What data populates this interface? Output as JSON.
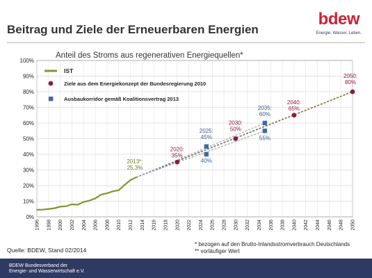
{
  "logo": {
    "wordmark": "bdew",
    "tagline": "Energie. Wasser. Leben."
  },
  "title": "Beitrag und Ziele der Erneuerbaren Energien",
  "subtitle": "Anteil des Stroms aus regenerativen Energiequellen*",
  "source": "Quelle: BDEW, Stand 02/2014",
  "footnotes": [
    "* bezogen auf den Brutto-Inlandsstromverbrauch Deutschlands",
    "** vorläufiger Wert"
  ],
  "footer": [
    "BDEW Bundesverband der",
    "Energie- und Wasserwirtschaft e.V."
  ],
  "colors": {
    "ist": "#7f9630",
    "ziele": "#8c1c40",
    "korridor": "#3d6aa3",
    "annotation_blue": "#3d5a8a",
    "annotation_red": "#8c1c40",
    "footer": "#2f3a63",
    "brand": "#cc2233"
  },
  "chart_data": {
    "type": "line",
    "ylim": [
      0,
      100
    ],
    "xlim": [
      1996,
      2050
    ],
    "y_ticks": [
      0,
      10,
      20,
      30,
      40,
      50,
      60,
      70,
      80,
      90,
      100
    ],
    "y_tick_labels": [
      "0%",
      "10%",
      "20%",
      "30%",
      "40%",
      "50%",
      "60%",
      "70%",
      "80%",
      "90%",
      "100%"
    ],
    "x_ticks": [
      1996,
      1998,
      2000,
      2002,
      2004,
      2006,
      2008,
      2010,
      2012,
      2014,
      2016,
      2018,
      2020,
      2022,
      2024,
      2026,
      2028,
      2030,
      2032,
      2034,
      2036,
      2038,
      2040,
      2042,
      2044,
      2046,
      2048,
      2050
    ],
    "grid": true,
    "legend_position": "top-left",
    "series": [
      {
        "name": "IST",
        "type": "line",
        "x": [
          1996,
          1997,
          1998,
          1999,
          2000,
          2001,
          2002,
          2003,
          2004,
          2005,
          2006,
          2007,
          2008,
          2009,
          2010,
          2011,
          2012,
          2013
        ],
        "values": [
          4.5,
          4.6,
          5.0,
          5.5,
          6.5,
          6.8,
          8.0,
          7.8,
          9.5,
          10.4,
          11.8,
          14.2,
          15.1,
          16.3,
          17.0,
          20.4,
          23.5,
          25.3
        ]
      },
      {
        "name": "Ziele aus dem Energiekonzept der Bundesregierung 2010",
        "type": "scatter",
        "x": [
          2020,
          2030,
          2040,
          2050
        ],
        "values": [
          35,
          50,
          65,
          80
        ]
      },
      {
        "name": "Ausbaukorridor gemäß Koalitionsvertrag 2013",
        "type": "scatter",
        "x": [
          2025,
          2025,
          2035,
          2035
        ],
        "values": [
          45,
          40,
          60,
          55
        ]
      }
    ],
    "trend_lines": [
      {
        "x": [
          2013,
          2050
        ],
        "values": [
          25.3,
          80
        ]
      },
      {
        "x": [
          2013,
          2035
        ],
        "values": [
          25.3,
          60
        ]
      },
      {
        "x": [
          2013,
          2035
        ],
        "values": [
          25.3,
          55
        ]
      }
    ],
    "annotations": [
      {
        "text": [
          "2013*:",
          "25,3%"
        ],
        "x": 2013,
        "y": 25.3,
        "color": "annotation_ist"
      },
      {
        "text": [
          "2020:",
          "35%"
        ],
        "x": 2020,
        "y": 35,
        "color": "annotation_red"
      },
      {
        "text": [
          "2025:",
          "45%"
        ],
        "x": 2025,
        "y": 45,
        "color": "annotation_blue"
      },
      {
        "text": [
          "40%"
        ],
        "x": 2025,
        "y": 40,
        "color": "annotation_blue"
      },
      {
        "text": [
          "2030:",
          "50%"
        ],
        "x": 2030,
        "y": 50,
        "color": "annotation_red"
      },
      {
        "text": [
          "2035:",
          "60%"
        ],
        "x": 2035,
        "y": 60,
        "color": "annotation_blue"
      },
      {
        "text": [
          "55%"
        ],
        "x": 2035,
        "y": 55,
        "color": "annotation_blue"
      },
      {
        "text": [
          "2040:",
          "65%"
        ],
        "x": 2040,
        "y": 65,
        "color": "annotation_red"
      },
      {
        "text": [
          "2050:",
          "80%"
        ],
        "x": 2050,
        "y": 80,
        "color": "annotation_red"
      }
    ]
  }
}
